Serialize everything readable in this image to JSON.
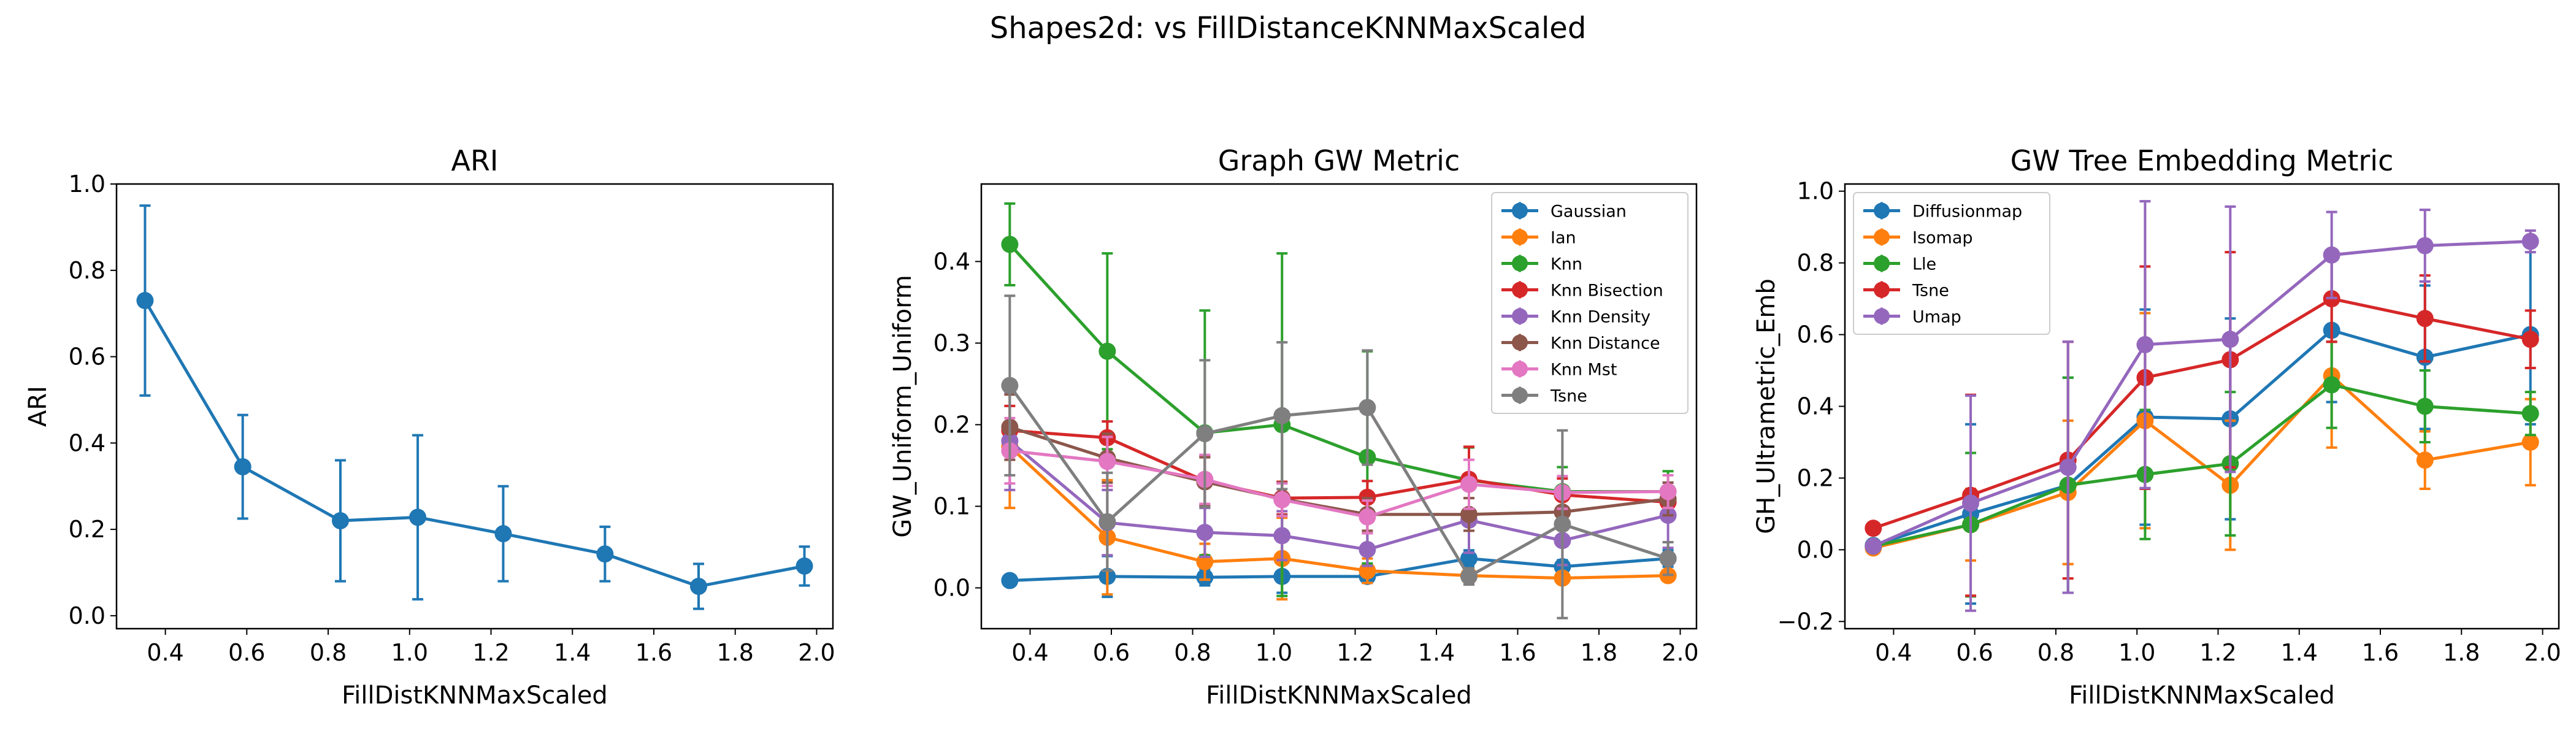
{
  "figure": {
    "title": "Shapes2d: vs FillDistanceKNNMaxScaled"
  },
  "colors": {
    "blue": "#1f77b4",
    "orange": "#ff7f0e",
    "green": "#2ca02c",
    "red": "#d62728",
    "purple": "#9467bd",
    "brown": "#8c564b",
    "pink": "#e377c2",
    "gray": "#7f7f7f"
  },
  "chart_data": [
    {
      "type": "line",
      "title": "ARI",
      "xlabel": "FillDistKNNMaxScaled",
      "ylabel": "ARI",
      "xlim": [
        0.28,
        2.04
      ],
      "ylim": [
        -0.03,
        1.0
      ],
      "xticks": [
        0.4,
        0.6,
        0.8,
        1.0,
        1.2,
        1.4,
        1.6,
        1.8,
        2.0
      ],
      "xtick_labels": [
        "0.4",
        "0.6",
        "0.8",
        "1.0",
        "1.2",
        "1.4",
        "1.6",
        "1.8",
        "2.0"
      ],
      "yticks": [
        0.0,
        0.2,
        0.4,
        0.6,
        0.8,
        1.0
      ],
      "ytick_labels": [
        "0.0",
        "0.2",
        "0.4",
        "0.6",
        "0.8",
        "1.0"
      ],
      "x": [
        0.35,
        0.59,
        0.83,
        1.02,
        1.23,
        1.48,
        1.71,
        1.97
      ],
      "series": [
        {
          "color": "#1f77b4",
          "values": [
            0.73,
            0.345,
            0.22,
            0.228,
            0.19,
            0.143,
            0.068,
            0.115
          ],
          "err": [
            0.22,
            0.12,
            0.14,
            0.19,
            0.11,
            0.063,
            0.052,
            0.045
          ]
        }
      ]
    },
    {
      "type": "line",
      "title": "Graph GW Metric",
      "xlabel": "FillDistKNNMaxScaled",
      "ylabel": "GW_Uniform_Uniform",
      "xlim": [
        0.28,
        2.04
      ],
      "ylim": [
        -0.05,
        0.495
      ],
      "xticks": [
        0.4,
        0.6,
        0.8,
        1.0,
        1.2,
        1.4,
        1.6,
        1.8,
        2.0
      ],
      "xtick_labels": [
        "0.4",
        "0.6",
        "0.8",
        "1.0",
        "1.2",
        "1.4",
        "1.6",
        "1.8",
        "2.0"
      ],
      "yticks": [
        0.0,
        0.1,
        0.2,
        0.3,
        0.4
      ],
      "ytick_labels": [
        "0.0",
        "0.1",
        "0.2",
        "0.3",
        "0.4"
      ],
      "legend": "top-right",
      "x": [
        0.35,
        0.59,
        0.83,
        1.02,
        1.23,
        1.48,
        1.71,
        1.97
      ],
      "series": [
        {
          "name": "Gaussian",
          "color": "#1f77b4",
          "values": [
            0.009,
            0.014,
            0.013,
            0.014,
            0.014,
            0.036,
            0.026,
            0.036
          ],
          "err": [
            0.006,
            0.025,
            0.01,
            0.02,
            0.008,
            0.01,
            0.008,
            0.01
          ]
        },
        {
          "name": "Ian",
          "color": "#ff7f0e",
          "values": [
            0.173,
            0.062,
            0.032,
            0.036,
            0.021,
            0.015,
            0.012,
            0.015
          ],
          "err": [
            0.075,
            0.07,
            0.022,
            0.05,
            0.015,
            0.008,
            0.006,
            0.005
          ]
        },
        {
          "name": "Knn",
          "color": "#2ca02c",
          "values": [
            0.421,
            0.29,
            0.19,
            0.2,
            0.16,
            0.132,
            0.118,
            0.118
          ],
          "err": [
            0.05,
            0.12,
            0.15,
            0.21,
            0.13,
            0.04,
            0.03,
            0.025
          ]
        },
        {
          "name": "Knn Bisection",
          "color": "#d62728",
          "values": [
            0.193,
            0.184,
            0.131,
            0.11,
            0.111,
            0.133,
            0.114,
            0.105
          ],
          "err": [
            0.03,
            0.02,
            0.03,
            0.02,
            0.02,
            0.04,
            0.02,
            0.015
          ]
        },
        {
          "name": "Knn Density",
          "color": "#9467bd",
          "values": [
            0.18,
            0.08,
            0.068,
            0.064,
            0.047,
            0.083,
            0.058,
            0.089
          ],
          "err": [
            0.06,
            0.04,
            0.03,
            0.03,
            0.02,
            0.04,
            0.03,
            0.04
          ]
        },
        {
          "name": "Knn Distance",
          "color": "#8c564b",
          "values": [
            0.197,
            0.159,
            0.13,
            0.109,
            0.09,
            0.09,
            0.093,
            0.109
          ],
          "err": [
            0.04,
            0.03,
            0.03,
            0.02,
            0.02,
            0.02,
            0.02,
            0.02
          ]
        },
        {
          "name": "Knn Mst",
          "color": "#e377c2",
          "values": [
            0.168,
            0.155,
            0.133,
            0.108,
            0.087,
            0.127,
            0.117,
            0.118
          ],
          "err": [
            0.04,
            0.03,
            0.03,
            0.02,
            0.02,
            0.03,
            0.02,
            0.02
          ]
        },
        {
          "name": "Tsne",
          "color": "#7f7f7f",
          "values": [
            0.248,
            0.081,
            0.189,
            0.211,
            0.221,
            0.014,
            0.078,
            0.036
          ],
          "err": [
            0.11,
            0.06,
            0.09,
            0.09,
            0.07,
            0.01,
            0.115,
            0.02
          ]
        }
      ]
    },
    {
      "type": "line",
      "title": "GW Tree Embedding Metric",
      "xlabel": "FillDistKNNMaxScaled",
      "ylabel": "GH_Ultrametric_Emb",
      "xlim": [
        0.28,
        2.04
      ],
      "ylim": [
        -0.22,
        1.02
      ],
      "xticks": [
        0.4,
        0.6,
        0.8,
        1.0,
        1.2,
        1.4,
        1.6,
        1.8,
        2.0
      ],
      "xtick_labels": [
        "0.4",
        "0.6",
        "0.8",
        "1.0",
        "1.2",
        "1.4",
        "1.6",
        "1.8",
        "2.0"
      ],
      "yticks": [
        -0.2,
        0.0,
        0.2,
        0.4,
        0.6,
        0.8,
        1.0
      ],
      "ytick_labels": [
        "−0.2",
        "0.0",
        "0.2",
        "0.4",
        "0.6",
        "0.8",
        "1.0"
      ],
      "legend": "top-left",
      "x": [
        0.35,
        0.59,
        0.83,
        1.02,
        1.23,
        1.48,
        1.71,
        1.97
      ],
      "series": [
        {
          "name": "Diffusionmap",
          "color": "#1f77b4",
          "values": [
            0.012,
            0.1,
            0.18,
            0.37,
            0.365,
            0.612,
            0.537,
            0.6
          ],
          "err": [
            0.01,
            0.25,
            0.3,
            0.3,
            0.28,
            0.2,
            0.2,
            0.25
          ]
        },
        {
          "name": "Isomap",
          "color": "#ff7f0e",
          "values": [
            0.005,
            0.07,
            0.16,
            0.36,
            0.18,
            0.485,
            0.25,
            0.3
          ],
          "err": [
            0.01,
            0.1,
            0.2,
            0.3,
            0.18,
            0.2,
            0.08,
            0.12
          ]
        },
        {
          "name": "Lle",
          "color": "#2ca02c",
          "values": [
            0.01,
            0.07,
            0.18,
            0.21,
            0.24,
            0.46,
            0.4,
            0.38
          ],
          "err": [
            0.01,
            0.2,
            0.3,
            0.18,
            0.2,
            0.12,
            0.1,
            0.06
          ]
        },
        {
          "name": "Tsne",
          "color": "#d62728",
          "values": [
            0.06,
            0.152,
            0.25,
            0.48,
            0.53,
            0.7,
            0.645,
            0.587
          ],
          "err": [
            0.01,
            0.28,
            0.33,
            0.31,
            0.3,
            0.12,
            0.12,
            0.08
          ]
        },
        {
          "name": "Umap",
          "color": "#9467bd",
          "values": [
            0.01,
            0.13,
            0.23,
            0.572,
            0.587,
            0.822,
            0.848,
            0.86
          ],
          "err": [
            0.01,
            0.3,
            0.35,
            0.4,
            0.37,
            0.12,
            0.1,
            0.03
          ]
        }
      ]
    }
  ]
}
